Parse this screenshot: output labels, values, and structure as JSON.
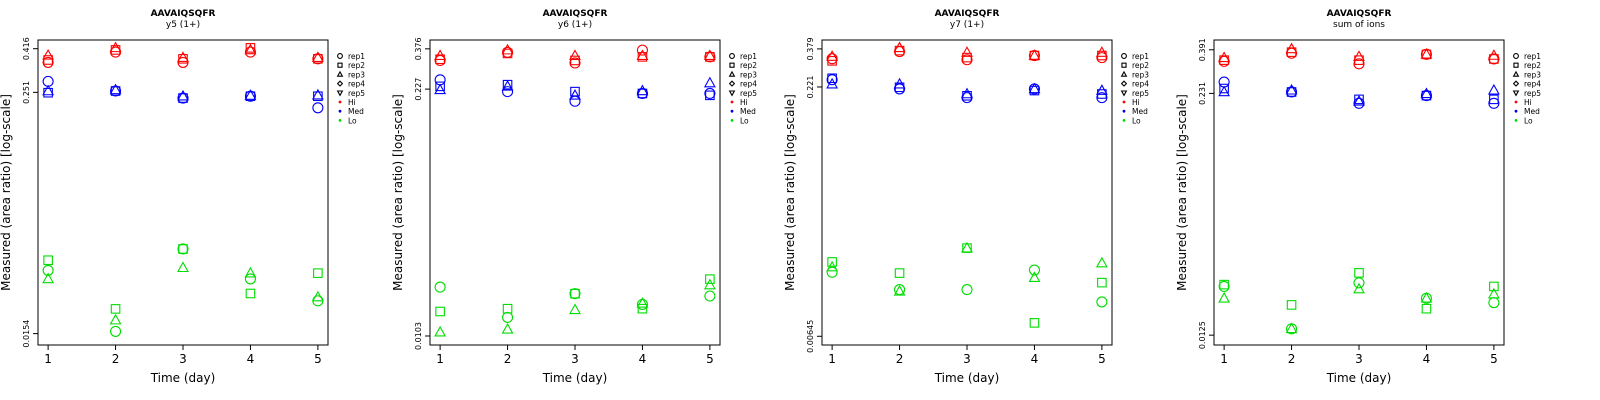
{
  "chart_data": [
    {
      "type": "scatter",
      "title": "AAVAIQSQFR",
      "subtitle": "y5 (1+)",
      "xlabel": "Time (day)",
      "ylabel": "Measured (area ratio) [log-scale]",
      "log_y": true,
      "x_ticks": [
        1,
        2,
        3,
        4,
        5
      ],
      "y_ticks": [
        0.0154,
        0.251,
        0.416
      ],
      "y_tick_labels": [
        "0.0154",
        "0.251",
        "0.416"
      ],
      "xlim": [
        0.85,
        5.15
      ],
      "ylim": [
        0.0135,
        0.46
      ],
      "legend_position": "right",
      "legend_reps": [
        "rep1",
        "rep2",
        "rep3",
        "rep4",
        "rep5"
      ],
      "legend_levels": [
        "Hi",
        "Med",
        "Lo"
      ],
      "colors": {
        "Hi": "#ff0000",
        "Med": "#0000ff",
        "Lo": "#00dd00"
      },
      "series": [
        {
          "level": "Hi",
          "rep": "rep1",
          "x": [
            1,
            2,
            3,
            4,
            5
          ],
          "y": [
            0.355,
            0.4,
            0.355,
            0.4,
            0.37
          ]
        },
        {
          "level": "Hi",
          "rep": "rep2",
          "x": [
            1,
            2,
            3,
            4,
            5
          ],
          "y": [
            0.365,
            0.41,
            0.37,
            0.42,
            0.37
          ]
        },
        {
          "level": "Hi",
          "rep": "rep3",
          "x": [
            1,
            2,
            3,
            4,
            5
          ],
          "y": [
            0.385,
            0.42,
            0.375,
            0.41,
            0.375
          ]
        },
        {
          "level": "Med",
          "rep": "rep1",
          "x": [
            1,
            2,
            3,
            4,
            5
          ],
          "y": [
            0.285,
            0.255,
            0.235,
            0.24,
            0.21
          ]
        },
        {
          "level": "Med",
          "rep": "rep2",
          "x": [
            1,
            2,
            3,
            4,
            5
          ],
          "y": [
            0.25,
            0.255,
            0.235,
            0.24,
            0.24
          ]
        },
        {
          "level": "Med",
          "rep": "rep3",
          "x": [
            1,
            2,
            3,
            4,
            5
          ],
          "y": [
            0.255,
            0.258,
            0.24,
            0.242,
            0.243
          ]
        },
        {
          "level": "Lo",
          "rep": "rep1",
          "x": [
            1,
            2,
            3,
            4,
            5
          ],
          "y": [
            0.032,
            0.0158,
            0.041,
            0.029,
            0.0225
          ]
        },
        {
          "level": "Lo",
          "rep": "rep2",
          "x": [
            1,
            2,
            3,
            4,
            5
          ],
          "y": [
            0.036,
            0.0205,
            0.041,
            0.0245,
            0.031
          ]
        },
        {
          "level": "Lo",
          "rep": "rep3",
          "x": [
            1,
            2,
            3,
            4,
            5
          ],
          "y": [
            0.029,
            0.018,
            0.033,
            0.031,
            0.0235
          ]
        }
      ]
    },
    {
      "type": "scatter",
      "title": "AAVAIQSQFR",
      "subtitle": "y6 (1+)",
      "xlabel": "Time (day)",
      "ylabel": "Measured (area ratio) [log-scale]",
      "log_y": true,
      "x_ticks": [
        1,
        2,
        3,
        4,
        5
      ],
      "y_ticks": [
        0.0103,
        0.227,
        0.376
      ],
      "y_tick_labels": [
        "0.0103",
        "0.227",
        "0.376"
      ],
      "xlim": [
        0.85,
        5.15
      ],
      "ylim": [
        0.0092,
        0.42
      ],
      "legend_position": "right",
      "legend_reps": [
        "rep1",
        "rep2",
        "rep3",
        "rep4",
        "rep5"
      ],
      "legend_levels": [
        "Hi",
        "Med",
        "Lo"
      ],
      "colors": {
        "Hi": "#ff0000",
        "Med": "#0000ff",
        "Lo": "#00dd00"
      },
      "series": [
        {
          "level": "Hi",
          "rep": "rep1",
          "x": [
            1,
            2,
            3,
            4,
            5
          ],
          "y": [
            0.325,
            0.36,
            0.315,
            0.37,
            0.34
          ]
        },
        {
          "level": "Hi",
          "rep": "rep2",
          "x": [
            1,
            2,
            3,
            4,
            5
          ],
          "y": [
            0.33,
            0.355,
            0.325,
            0.34,
            0.34
          ]
        },
        {
          "level": "Hi",
          "rep": "rep3",
          "x": [
            1,
            2,
            3,
            4,
            5
          ],
          "y": [
            0.345,
            0.37,
            0.345,
            0.345,
            0.345
          ]
        },
        {
          "level": "Med",
          "rep": "rep1",
          "x": [
            1,
            2,
            3,
            4,
            5
          ],
          "y": [
            0.255,
            0.22,
            0.195,
            0.215,
            0.215
          ]
        },
        {
          "level": "Med",
          "rep": "rep2",
          "x": [
            1,
            2,
            3,
            4,
            5
          ],
          "y": [
            0.235,
            0.24,
            0.22,
            0.215,
            0.21
          ]
        },
        {
          "level": "Med",
          "rep": "rep3",
          "x": [
            1,
            2,
            3,
            4,
            5
          ],
          "y": [
            0.225,
            0.235,
            0.21,
            0.222,
            0.245
          ]
        },
        {
          "level": "Lo",
          "rep": "rep1",
          "x": [
            1,
            2,
            3,
            4,
            5
          ],
          "y": [
            0.019,
            0.013,
            0.0175,
            0.0153,
            0.017
          ]
        },
        {
          "level": "Lo",
          "rep": "rep2",
          "x": [
            1,
            2,
            3,
            4,
            5
          ],
          "y": [
            0.014,
            0.0145,
            0.0175,
            0.0145,
            0.021
          ]
        },
        {
          "level": "Lo",
          "rep": "rep3",
          "x": [
            1,
            2,
            3,
            4,
            5
          ],
          "y": [
            0.0108,
            0.0112,
            0.0143,
            0.0155,
            0.0195
          ]
        }
      ]
    },
    {
      "type": "scatter",
      "title": "AAVAIQSQFR",
      "subtitle": "y7 (1+)",
      "xlabel": "Time (day)",
      "ylabel": "Measured (area ratio) [log-scale]",
      "log_y": true,
      "x_ticks": [
        1,
        2,
        3,
        4,
        5
      ],
      "y_ticks": [
        0.00645,
        0.221,
        0.379
      ],
      "y_tick_labels": [
        "0.00645",
        "0.221",
        "0.379"
      ],
      "xlim": [
        0.85,
        5.15
      ],
      "ylim": [
        0.0057,
        0.43
      ],
      "legend_position": "right",
      "legend_reps": [
        "rep1",
        "rep2",
        "rep3",
        "rep4",
        "rep5"
      ],
      "legend_levels": [
        "Hi",
        "Med",
        "Lo"
      ],
      "colors": {
        "Hi": "#ff0000",
        "Med": "#0000ff",
        "Lo": "#00dd00"
      },
      "series": [
        {
          "level": "Hi",
          "rep": "rep1",
          "x": [
            1,
            2,
            3,
            4,
            5
          ],
          "y": [
            0.33,
            0.365,
            0.325,
            0.345,
            0.335
          ]
        },
        {
          "level": "Hi",
          "rep": "rep2",
          "x": [
            1,
            2,
            3,
            4,
            5
          ],
          "y": [
            0.32,
            0.37,
            0.335,
            0.345,
            0.345
          ]
        },
        {
          "level": "Hi",
          "rep": "rep3",
          "x": [
            1,
            2,
            3,
            4,
            5
          ],
          "y": [
            0.34,
            0.385,
            0.36,
            0.345,
            0.36
          ]
        },
        {
          "level": "Med",
          "rep": "rep1",
          "x": [
            1,
            2,
            3,
            4,
            5
          ],
          "y": [
            0.245,
            0.215,
            0.19,
            0.215,
            0.19
          ]
        },
        {
          "level": "Med",
          "rep": "rep2",
          "x": [
            1,
            2,
            3,
            4,
            5
          ],
          "y": [
            0.25,
            0.22,
            0.195,
            0.21,
            0.2
          ]
        },
        {
          "level": "Med",
          "rep": "rep3",
          "x": [
            1,
            2,
            3,
            4,
            5
          ],
          "y": [
            0.23,
            0.23,
            0.2,
            0.215,
            0.21
          ]
        },
        {
          "level": "Lo",
          "rep": "rep1",
          "x": [
            1,
            2,
            3,
            4,
            5
          ],
          "y": [
            0.016,
            0.0125,
            0.0125,
            0.0165,
            0.0105
          ]
        },
        {
          "level": "Lo",
          "rep": "rep2",
          "x": [
            1,
            2,
            3,
            4,
            5
          ],
          "y": [
            0.0185,
            0.0158,
            0.0225,
            0.0078,
            0.0138
          ]
        },
        {
          "level": "Lo",
          "rep": "rep3",
          "x": [
            1,
            2,
            3,
            4,
            5
          ],
          "y": [
            0.0172,
            0.0122,
            0.0225,
            0.0148,
            0.0182
          ]
        }
      ]
    },
    {
      "type": "scatter",
      "title": "AAVAIQSQFR",
      "subtitle": "sum of ions",
      "xlabel": "Time (day)",
      "ylabel": "Measured (area ratio) [log-scale]",
      "log_y": true,
      "x_ticks": [
        1,
        2,
        3,
        4,
        5
      ],
      "y_ticks": [
        0.0125,
        0.231,
        0.391
      ],
      "y_tick_labels": [
        "0.0125",
        "0.231",
        "0.391"
      ],
      "xlim": [
        0.85,
        5.15
      ],
      "ylim": [
        0.0111,
        0.44
      ],
      "legend_position": "right",
      "legend_reps": [
        "rep1",
        "rep2",
        "rep3",
        "rep4",
        "rep5"
      ],
      "legend_levels": [
        "Hi",
        "Med",
        "Lo"
      ],
      "colors": {
        "Hi": "#ff0000",
        "Med": "#0000ff",
        "Lo": "#00dd00"
      },
      "series": [
        {
          "level": "Hi",
          "rep": "rep1",
          "x": [
            1,
            2,
            3,
            4,
            5
          ],
          "y": [
            0.34,
            0.375,
            0.33,
            0.37,
            0.35
          ]
        },
        {
          "level": "Hi",
          "rep": "rep2",
          "x": [
            1,
            2,
            3,
            4,
            5
          ],
          "y": [
            0.345,
            0.38,
            0.345,
            0.37,
            0.35
          ]
        },
        {
          "level": "Hi",
          "rep": "rep3",
          "x": [
            1,
            2,
            3,
            4,
            5
          ],
          "y": [
            0.355,
            0.395,
            0.36,
            0.37,
            0.365
          ]
        },
        {
          "level": "Med",
          "rep": "rep1",
          "x": [
            1,
            2,
            3,
            4,
            5
          ],
          "y": [
            0.265,
            0.235,
            0.205,
            0.225,
            0.205
          ]
        },
        {
          "level": "Med",
          "rep": "rep2",
          "x": [
            1,
            2,
            3,
            4,
            5
          ],
          "y": [
            0.245,
            0.235,
            0.215,
            0.225,
            0.215
          ]
        },
        {
          "level": "Med",
          "rep": "rep3",
          "x": [
            1,
            2,
            3,
            4,
            5
          ],
          "y": [
            0.235,
            0.24,
            0.21,
            0.23,
            0.24
          ]
        },
        {
          "level": "Lo",
          "rep": "rep1",
          "x": [
            1,
            2,
            3,
            4,
            5
          ],
          "y": [
            0.0225,
            0.0135,
            0.0235,
            0.0195,
            0.0185
          ]
        },
        {
          "level": "Lo",
          "rep": "rep2",
          "x": [
            1,
            2,
            3,
            4,
            5
          ],
          "y": [
            0.023,
            0.018,
            0.0265,
            0.0172,
            0.0225
          ]
        },
        {
          "level": "Lo",
          "rep": "rep3",
          "x": [
            1,
            2,
            3,
            4,
            5
          ],
          "y": [
            0.0195,
            0.0135,
            0.0218,
            0.0195,
            0.0205
          ]
        }
      ]
    }
  ]
}
